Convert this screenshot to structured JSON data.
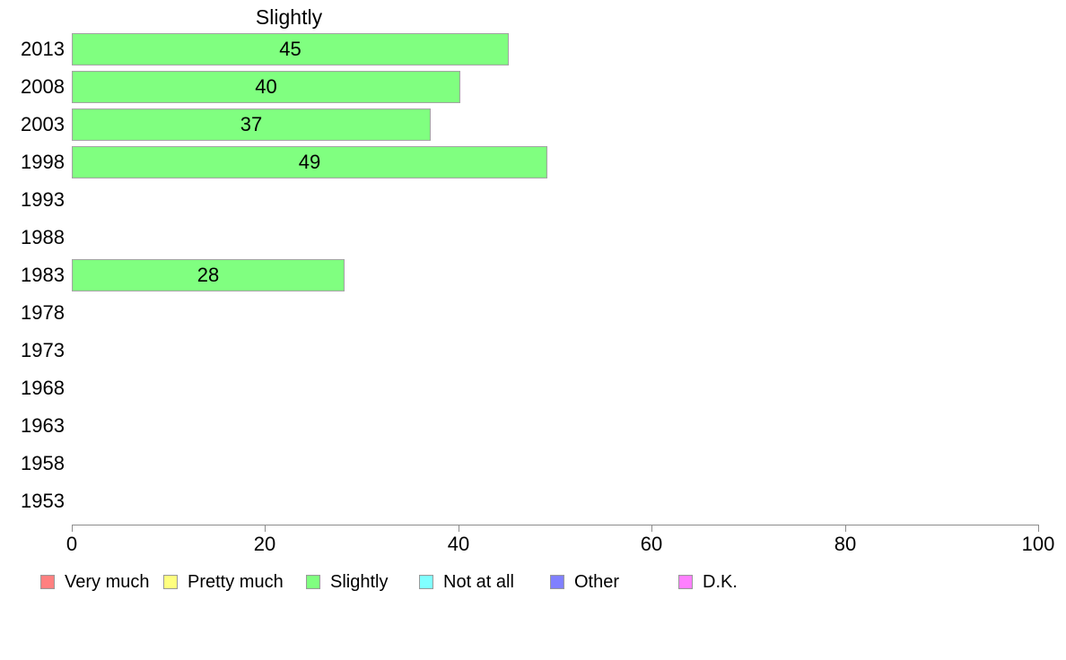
{
  "chart_data": {
    "type": "bar",
    "orientation": "horizontal",
    "title": "Slightly",
    "categories": [
      "2013",
      "2008",
      "2003",
      "1998",
      "1993",
      "1988",
      "1983",
      "1978",
      "1973",
      "1968",
      "1963",
      "1958",
      "1953"
    ],
    "values": [
      45,
      40,
      37,
      49,
      null,
      null,
      28,
      null,
      null,
      null,
      null,
      null,
      null
    ],
    "xlabel": "",
    "ylabel": "",
    "xlim": [
      0,
      100
    ],
    "x_ticks": [
      0,
      20,
      40,
      60,
      80,
      100
    ],
    "grid": false,
    "bar_fill_color": "#80ff80",
    "bar_border_color": "#a3a3a3",
    "axis_color": "#8c8c8c",
    "legend_position": "bottom",
    "legend": [
      {
        "label": "Very much",
        "color": "#ff8080"
      },
      {
        "label": "Pretty much",
        "color": "#ffff80"
      },
      {
        "label": "Slightly",
        "color": "#80ff80"
      },
      {
        "label": "Not at all",
        "color": "#80ffff"
      },
      {
        "label": "Other",
        "color": "#8080ff"
      },
      {
        "label": "D.K.",
        "color": "#ff80ff"
      }
    ]
  }
}
